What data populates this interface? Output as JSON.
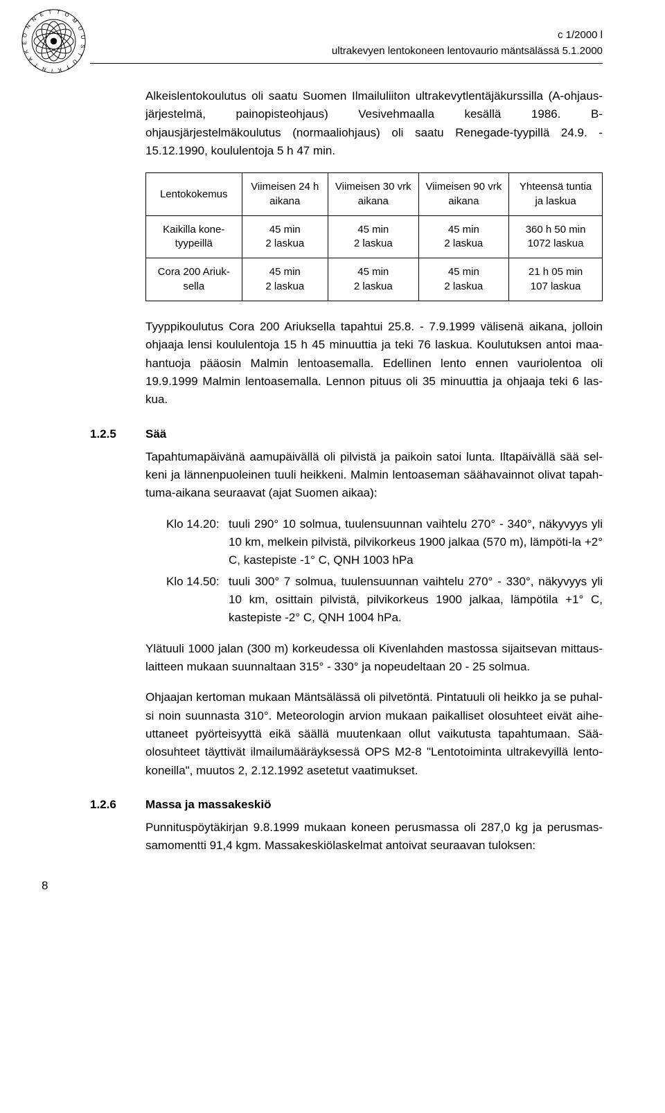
{
  "header": {
    "doc_ref": "c 1/2000 l",
    "doc_title": "ultrakevyen lentokoneen lentovaurio mäntsälässä 5.1.2000"
  },
  "p1": "Alkeislentokoulutus oli saatu Suomen Ilmailuliiton ultrakevytlentäjäkurssilla (A-ohjaus-järjestelmä, painopisteohjaus) Vesivehmaalla kesällä 1986. B-ohjausjärjestelmäkoulutus (normaaliohjaus) oli saatu Renegade-tyypillä 24.9. - 15.12.1990, koululentoja 5 h 47 min.",
  "experience_table": {
    "headers": [
      "Lentokokemus",
      "Viimeisen 24 h aikana",
      "Viimeisen 30 vrk aikana",
      "Viimeisen 90 vrk aikana",
      "Yhteensä tuntia ja laskua"
    ],
    "rows": [
      [
        "Kaikilla kone-tyypeillä",
        "45 min\n2 laskua",
        "45 min\n2 laskua",
        "45 min\n2 laskua",
        "360 h 50 min\n1072 laskua"
      ],
      [
        "Cora 200 Ariuk-sella",
        "45 min\n2 laskua",
        "45 min\n2 laskua",
        "45 min\n2 laskua",
        "21 h 05 min\n107 laskua"
      ]
    ]
  },
  "p2": "Tyyppikoulutus Cora 200 Ariuksella tapahtui 25.8. - 7.9.1999 välisenä aikana, jolloin ohjaaja lensi koululentoja 15 h 45 minuuttia ja teki 76 laskua. Koulutuksen antoi maa-hantuoja pääosin Malmin lentoasemalla. Edellinen lento ennen vauriolentoa oli 19.9.1999 Malmin lentoasemalla. Lennon pituus oli 35 minuuttia ja ohjaaja teki 6 las-kua.",
  "sections": {
    "saa": {
      "num": "1.2.5",
      "title": "Sää",
      "p1": "Tapahtumapäivänä aamupäivällä oli pilvistä ja paikoin satoi lunta. Iltapäivällä sää sel-keni ja lännenpuoleinen tuuli heikkeni. Malmin lentoaseman säähavainnot olivat tapah-tuma-aikana seuraavat (ajat Suomen aikaa):",
      "observations": [
        {
          "time": "Klo 14.20:",
          "text": "tuuli 290° 10 solmua, tuulensuunnan vaihtelu 270° - 340°, näkyvyys yli 10 km, melkein pilvistä, pilvikorkeus 1900 jalkaa (570 m), lämpöti-la +2° C, kastepiste -1° C, QNH 1003 hPa"
        },
        {
          "time": "Klo 14.50:",
          "text": "tuuli 300° 7 solmua, tuulensuunnan vaihtelu 270° - 330°, näkyvyys yli 10 km, osittain pilvistä, pilvikorkeus 1900 jalkaa, lämpötila +1° C, kastepiste -2° C, QNH 1004 hPa."
        }
      ],
      "p2": "Ylätuuli 1000 jalan (300 m) korkeudessa oli Kivenlahden mastossa sijaitsevan mittaus-laitteen mukaan suunnaltaan 315° - 330° ja nopeudeltaan 20 - 25 solmua.",
      "p3": "Ohjaajan kertoman mukaan Mäntsälässä oli pilvetöntä. Pintatuuli oli heikko ja se puhal-si noin suunnasta 310°. Meteorologin arvion mukaan paikalliset olosuhteet eivät aihe-uttaneet pyörteisyyttä eikä säällä muutenkaan ollut vaikutusta tapahtumaan. Sää-olosuhteet täyttivät ilmailumääräyksessä OPS M2-8 \"Lentotoiminta ultrakevyillä lento-koneilla\", muutos 2, 2.12.1992 asetetut vaatimukset."
    },
    "massa": {
      "num": "1.2.6",
      "title": "Massa ja massakeskiö",
      "p1": "Punnituspöytäkirjan 9.8.1999 mukaan koneen perusmassa oli 287,0 kg ja perusmas-samomentti 91,4 kgm. Massakeskiölaskelmat antoivat seuraavan tuloksen:"
    }
  },
  "page_number": "8",
  "colors": {
    "text": "#000000",
    "background": "#ffffff",
    "rule": "#000000"
  }
}
